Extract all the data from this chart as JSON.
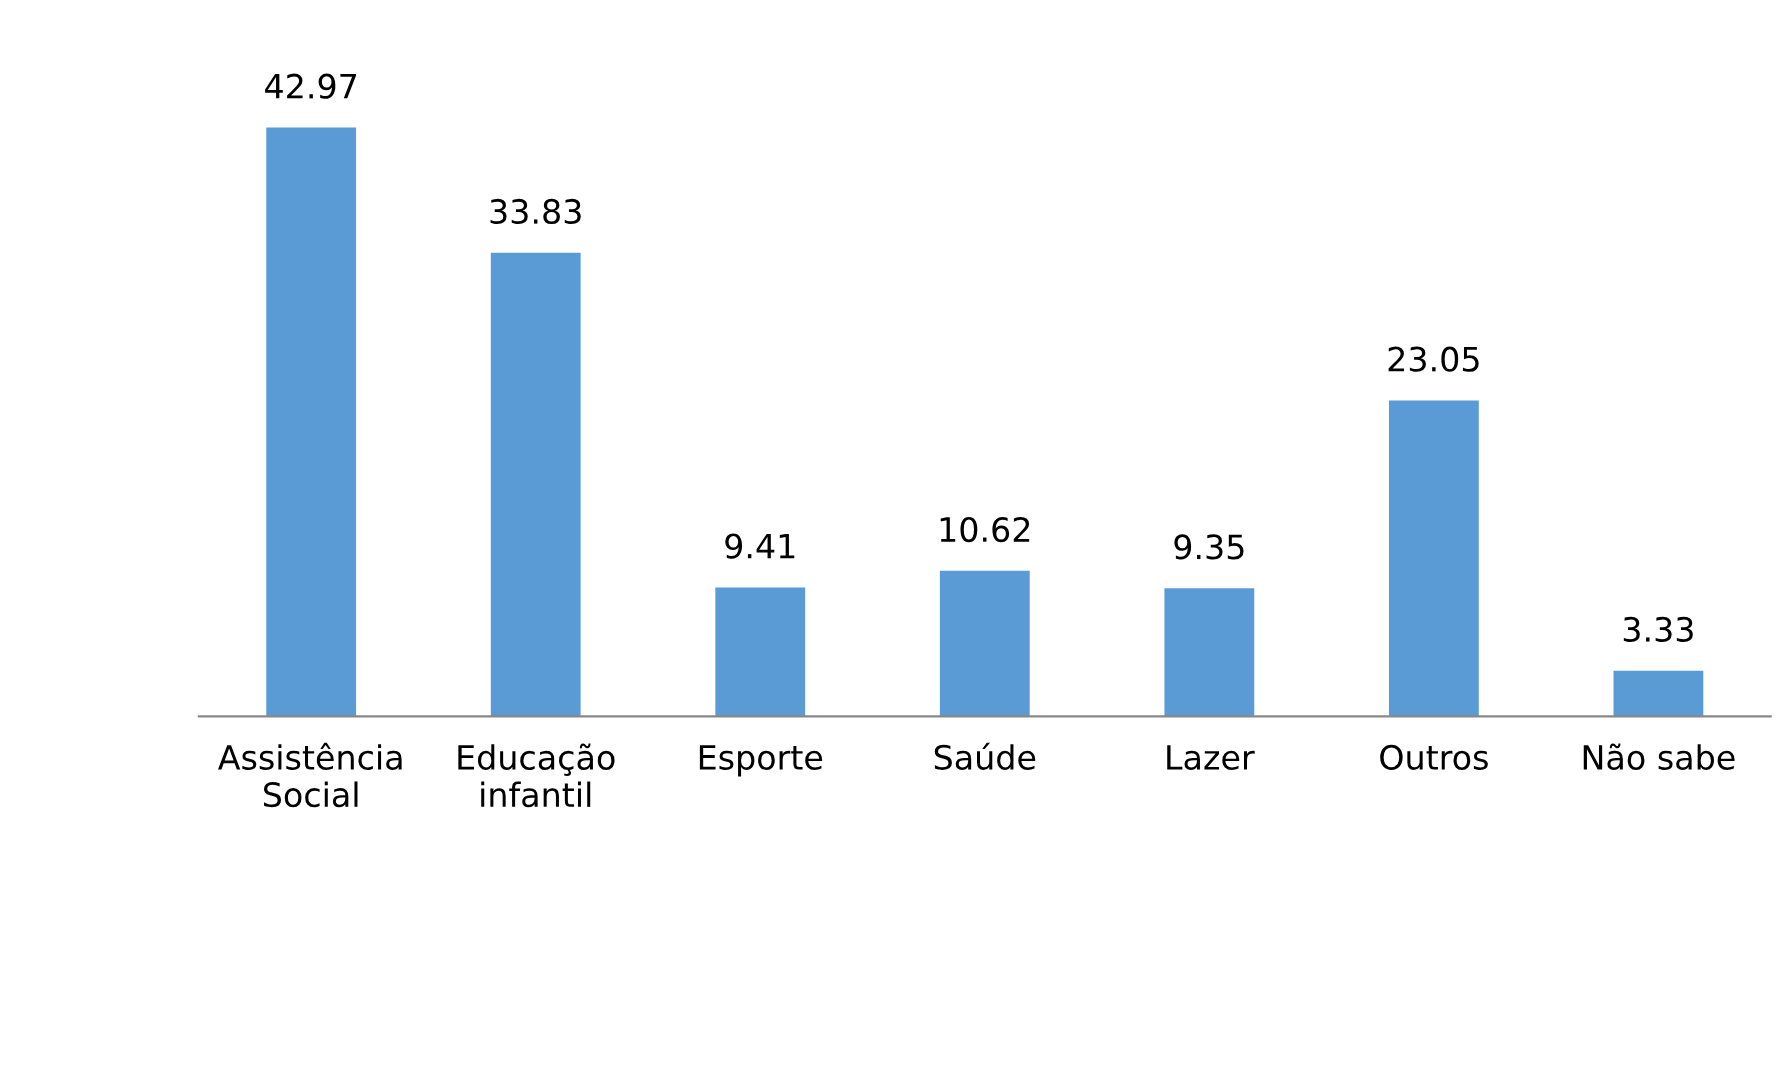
{
  "chart_data": {
    "type": "bar",
    "categories": [
      "Assistência\nSocial",
      "Educação\ninfantil",
      "Esporte",
      "Saúde",
      "Lazer",
      "Outros",
      "Não sabe"
    ],
    "values": [
      42.97,
      33.83,
      9.41,
      10.62,
      9.35,
      23.05,
      3.33
    ],
    "color": "#5b9bd5",
    "data_labels": true,
    "grid": false,
    "legend": false
  }
}
